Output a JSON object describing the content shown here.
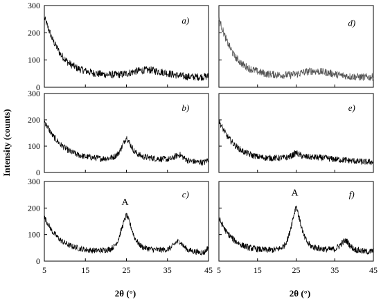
{
  "figure": {
    "ylabel": "Intensity (counts)",
    "xlabel": "2θ (°)",
    "xticks": [
      "5",
      "15",
      "25",
      "35",
      "45"
    ],
    "yticks": [
      "0",
      "100",
      "200",
      "300"
    ],
    "line_color": "#000000",
    "line_color_light": "#555555"
  },
  "chart_data": [
    {
      "type": "line",
      "panel_label": "a)",
      "peak_label": "",
      "xlim": [
        5,
        45
      ],
      "ylim": [
        0,
        300
      ],
      "grid": false,
      "x": [
        5,
        7,
        9,
        11,
        13,
        15,
        17,
        19,
        21,
        23,
        25,
        27,
        29,
        31,
        33,
        35,
        37,
        39,
        41,
        43,
        45
      ],
      "y": [
        255,
        175,
        120,
        88,
        70,
        60,
        52,
        48,
        46,
        46,
        50,
        58,
        63,
        63,
        58,
        52,
        45,
        40,
        38,
        38,
        40
      ],
      "noise": 14
    },
    {
      "type": "line",
      "panel_label": "b)",
      "peak_label": "",
      "xlim": [
        5,
        45
      ],
      "ylim": [
        0,
        300
      ],
      "grid": false,
      "x": [
        5,
        7,
        9,
        11,
        13,
        15,
        17,
        19,
        21,
        22,
        23,
        24,
        25,
        26,
        27,
        28,
        29,
        31,
        33,
        35,
        36,
        37,
        38,
        39,
        40,
        42,
        44,
        45
      ],
      "y": [
        195,
        140,
        105,
        82,
        68,
        60,
        56,
        53,
        55,
        60,
        72,
        100,
        135,
        105,
        78,
        68,
        60,
        55,
        52,
        50,
        52,
        62,
        68,
        55,
        45,
        40,
        38,
        50
      ],
      "noise": 12
    },
    {
      "type": "line",
      "panel_label": "c)",
      "peak_label": "A",
      "xlim": [
        5,
        45
      ],
      "ylim": [
        0,
        300
      ],
      "grid": false,
      "x": [
        5,
        7,
        9,
        11,
        13,
        15,
        17,
        19,
        21,
        22,
        23,
        24,
        25,
        26,
        27,
        28,
        29,
        31,
        33,
        35,
        36,
        37,
        38,
        39,
        40,
        42,
        44,
        45
      ],
      "y": [
        165,
        110,
        78,
        60,
        50,
        43,
        40,
        40,
        45,
        55,
        80,
        130,
        175,
        135,
        88,
        65,
        52,
        45,
        42,
        44,
        52,
        70,
        75,
        55,
        42,
        35,
        32,
        55
      ],
      "noise": 11
    },
    {
      "type": "line",
      "panel_label": "d)",
      "peak_label": "",
      "xlim": [
        5,
        45
      ],
      "ylim": [
        0,
        300
      ],
      "grid": false,
      "x": [
        5,
        7,
        9,
        11,
        13,
        15,
        17,
        19,
        21,
        23,
        25,
        27,
        29,
        31,
        33,
        35,
        37,
        39,
        41,
        43,
        45
      ],
      "y": [
        250,
        170,
        115,
        85,
        68,
        58,
        50,
        47,
        45,
        45,
        48,
        55,
        60,
        58,
        54,
        48,
        43,
        40,
        38,
        37,
        38
      ],
      "noise": 14
    },
    {
      "type": "line",
      "panel_label": "e)",
      "peak_label": "",
      "xlim": [
        5,
        45
      ],
      "ylim": [
        0,
        300
      ],
      "grid": false,
      "x": [
        5,
        7,
        9,
        11,
        13,
        15,
        17,
        19,
        21,
        23,
        24,
        25,
        26,
        27,
        29,
        31,
        33,
        35,
        37,
        39,
        41,
        43,
        45
      ],
      "y": [
        195,
        140,
        105,
        82,
        68,
        60,
        56,
        55,
        55,
        58,
        65,
        75,
        66,
        60,
        58,
        56,
        54,
        50,
        48,
        45,
        42,
        40,
        40
      ],
      "noise": 12
    },
    {
      "type": "line",
      "panel_label": "f)",
      "peak_label": "A",
      "xlim": [
        5,
        45
      ],
      "ylim": [
        0,
        300
      ],
      "grid": false,
      "x": [
        5,
        7,
        9,
        11,
        13,
        15,
        17,
        19,
        21,
        22,
        23,
        24,
        25,
        26,
        27,
        28,
        29,
        31,
        33,
        35,
        36,
        37,
        38,
        39,
        40,
        42,
        44,
        45
      ],
      "y": [
        160,
        108,
        78,
        60,
        50,
        45,
        42,
        42,
        48,
        60,
        90,
        150,
        210,
        150,
        95,
        68,
        55,
        48,
        44,
        45,
        55,
        70,
        78,
        58,
        45,
        38,
        35,
        40
      ],
      "noise": 12
    }
  ]
}
